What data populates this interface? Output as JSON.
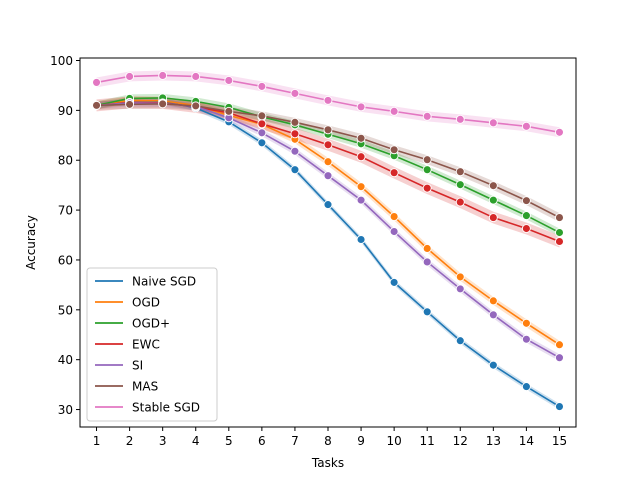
{
  "chart_data": {
    "type": "line",
    "title": "",
    "xlabel": "Tasks",
    "ylabel": "Accuracy",
    "x": [
      1,
      2,
      3,
      4,
      5,
      6,
      7,
      8,
      9,
      10,
      11,
      12,
      13,
      14,
      15
    ],
    "xlim": [
      0.5,
      15.5
    ],
    "ylim": [
      26.5,
      100.5
    ],
    "yticks": [
      30,
      40,
      50,
      60,
      70,
      80,
      90,
      100
    ],
    "grid": false,
    "legend_position": "lower-left",
    "series": [
      {
        "name": "Naive SGD",
        "color": "#1f77b4",
        "band": 0.6,
        "values": [
          91.0,
          92.0,
          91.8,
          90.5,
          87.7,
          83.5,
          78.1,
          71.1,
          64.1,
          55.5,
          49.6,
          43.8,
          38.9,
          34.6,
          30.6
        ]
      },
      {
        "name": "OGD",
        "color": "#ff7f0e",
        "band": 0.8,
        "values": [
          91.0,
          92.0,
          91.9,
          91.0,
          89.0,
          87.2,
          84.2,
          79.7,
          74.7,
          68.7,
          62.3,
          56.6,
          51.8,
          47.3,
          43.0
        ]
      },
      {
        "name": "OGD+",
        "color": "#2ca02c",
        "band": 0.8,
        "values": [
          91.0,
          92.4,
          92.5,
          91.8,
          90.6,
          88.7,
          87.1,
          85.2,
          83.3,
          80.9,
          78.1,
          75.1,
          72.0,
          68.9,
          65.5
        ]
      },
      {
        "name": "EWC",
        "color": "#d62728",
        "band": 1.2,
        "values": [
          91.0,
          91.6,
          91.5,
          90.7,
          89.5,
          87.3,
          85.3,
          83.1,
          80.7,
          77.5,
          74.4,
          71.6,
          68.5,
          66.3,
          63.7
        ]
      },
      {
        "name": "SI",
        "color": "#9467bd",
        "band": 0.7,
        "values": [
          91.0,
          91.5,
          91.4,
          90.8,
          88.5,
          85.5,
          81.8,
          76.9,
          72.0,
          65.7,
          59.6,
          54.2,
          49.0,
          44.1,
          40.4
        ]
      },
      {
        "name": "MAS",
        "color": "#8c564b",
        "band": 0.9,
        "values": [
          91.0,
          91.2,
          91.3,
          90.9,
          89.8,
          88.9,
          87.6,
          86.1,
          84.4,
          82.1,
          80.1,
          77.7,
          74.9,
          71.9,
          68.5
        ]
      },
      {
        "name": "Stable SGD",
        "color": "#e377c2",
        "band": 1.0,
        "values": [
          95.6,
          96.8,
          97.0,
          96.8,
          96.0,
          94.8,
          93.4,
          92.0,
          90.7,
          89.8,
          88.8,
          88.2,
          87.5,
          86.8,
          85.6
        ]
      }
    ]
  }
}
